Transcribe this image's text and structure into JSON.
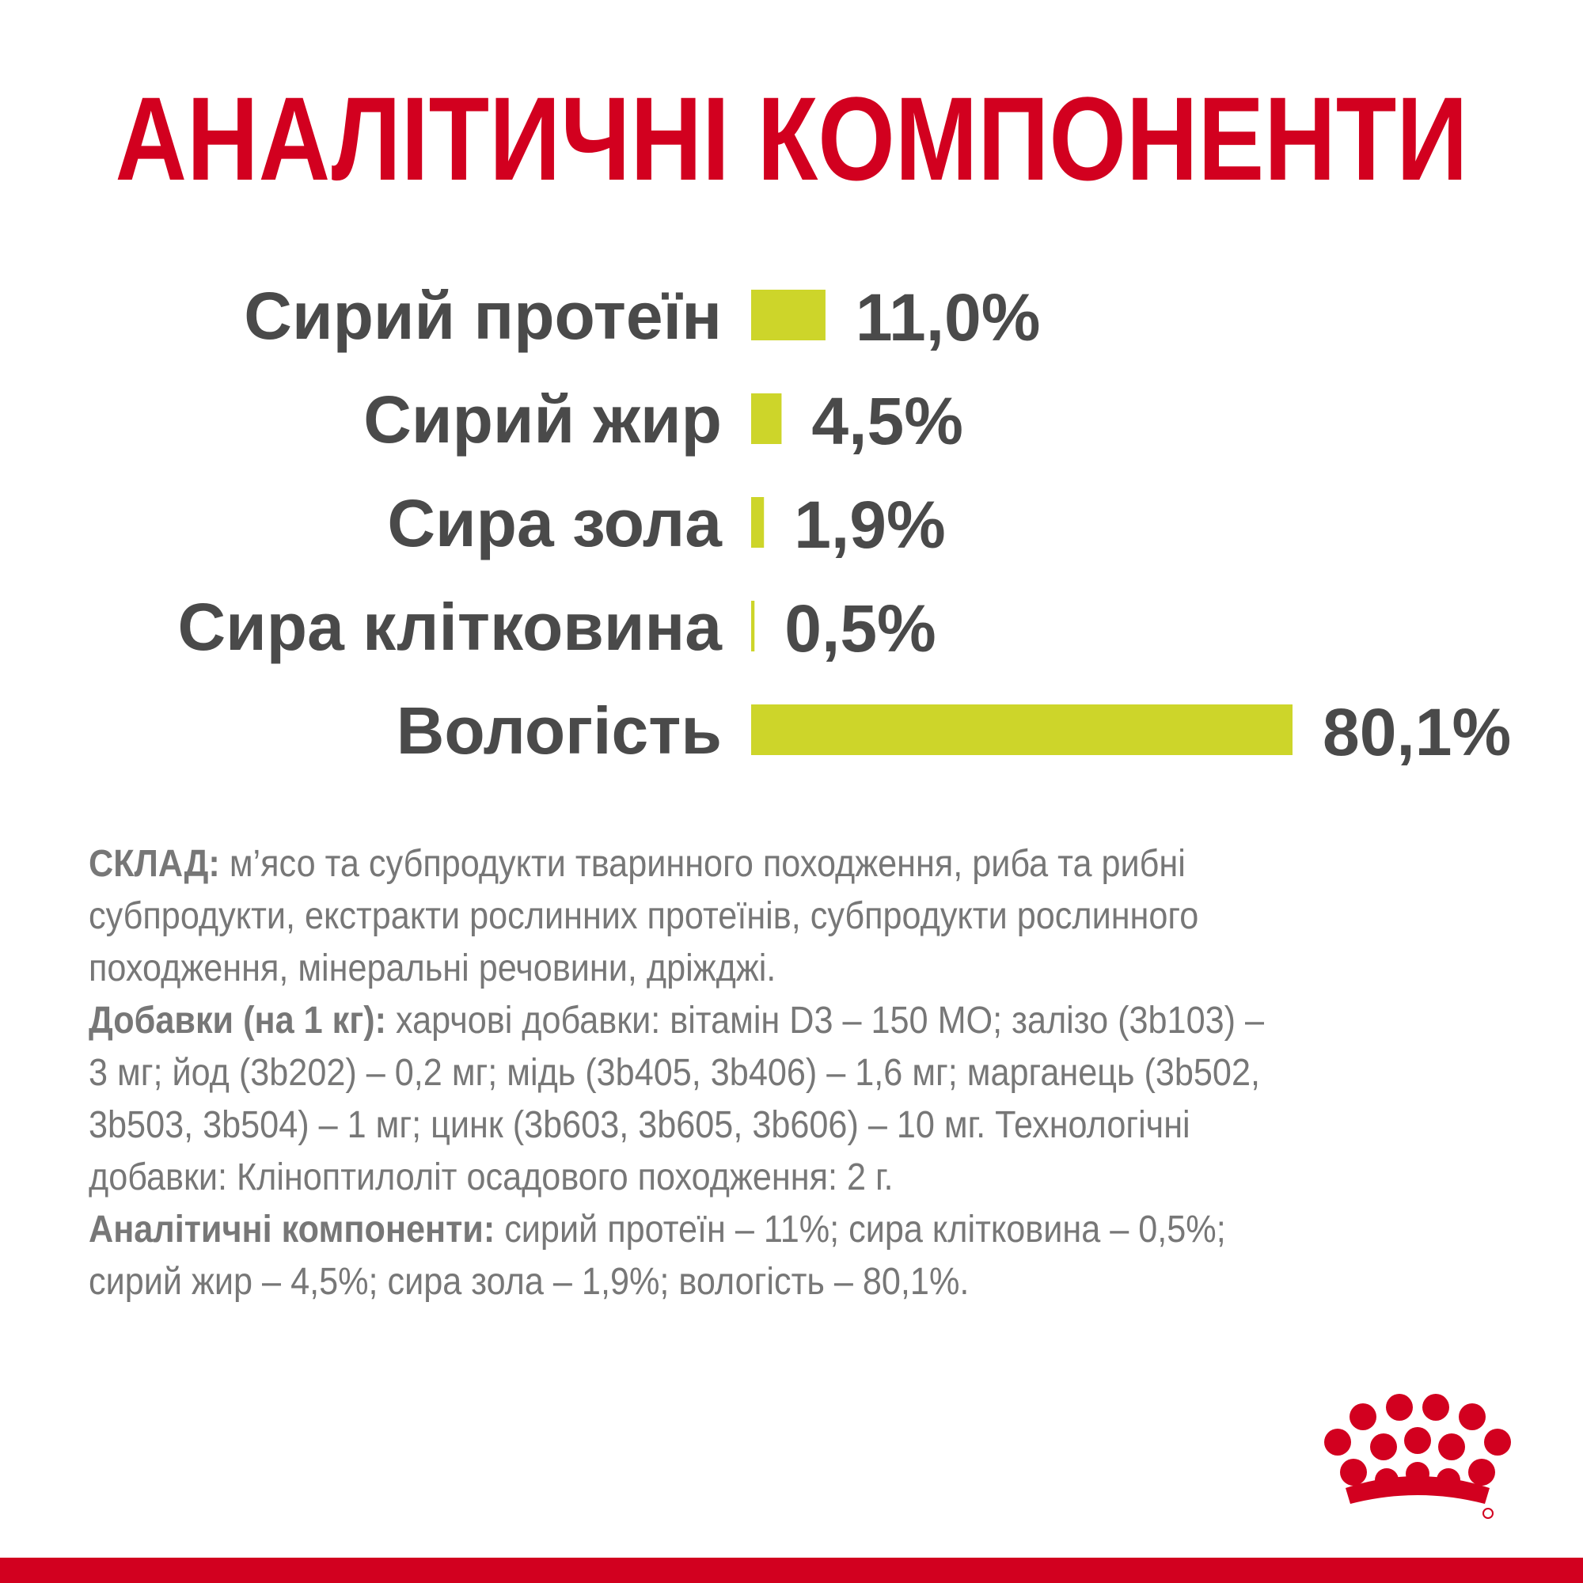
{
  "chart_data": {
    "type": "hbar",
    "title": "АНАЛІТИЧНІ КОМПОНЕНТИ",
    "categories": [
      "Сирий протеїн",
      "Сирий жир",
      "Сира зола",
      "Сира клітковина",
      "Вологість"
    ],
    "values": [
      11.0,
      4.5,
      1.9,
      0.5,
      80.1
    ],
    "value_labels": [
      "11,0%",
      "4,5%",
      "1,9%",
      "0,5%",
      "80,1%"
    ],
    "color": "#cdd52a"
  },
  "composition": {
    "lines": [
      {
        "bold": "СКЛАД:",
        "text": " м’ясо та субпродукти тваринного походження, риба та рибні"
      },
      {
        "text": "субпродукти, екстракти рослинних протеїнів, субпродукти рослинного"
      },
      {
        "text": "походження, мінеральні речовини, дріжджі."
      },
      {
        "bold": "Добавки (на 1 кг):",
        "text": " харчові добавки: вітамін D3 – 150 МО; залізо (3b103) –"
      },
      {
        "text": "3 мг; йод (3b202) – 0,2 мг; мідь (3b405, 3b406) – 1,6 мг; марганець (3b502,"
      },
      {
        "text": "3b503, 3b504) – 1 мг; цинк (3b603, 3b605, 3b606) – 10 мг. Технологічні"
      },
      {
        "text": "добавки: Кліноптилоліт осадового походження: 2 г."
      },
      {
        "bold": "Аналітичні компоненти:",
        "text": " сирий протеїн – 11%; сира клітковина – 0,5%;"
      },
      {
        "text": "сирий жир – 4,5%; сира зола – 1,9%; вологість – 80,1%."
      }
    ]
  }
}
